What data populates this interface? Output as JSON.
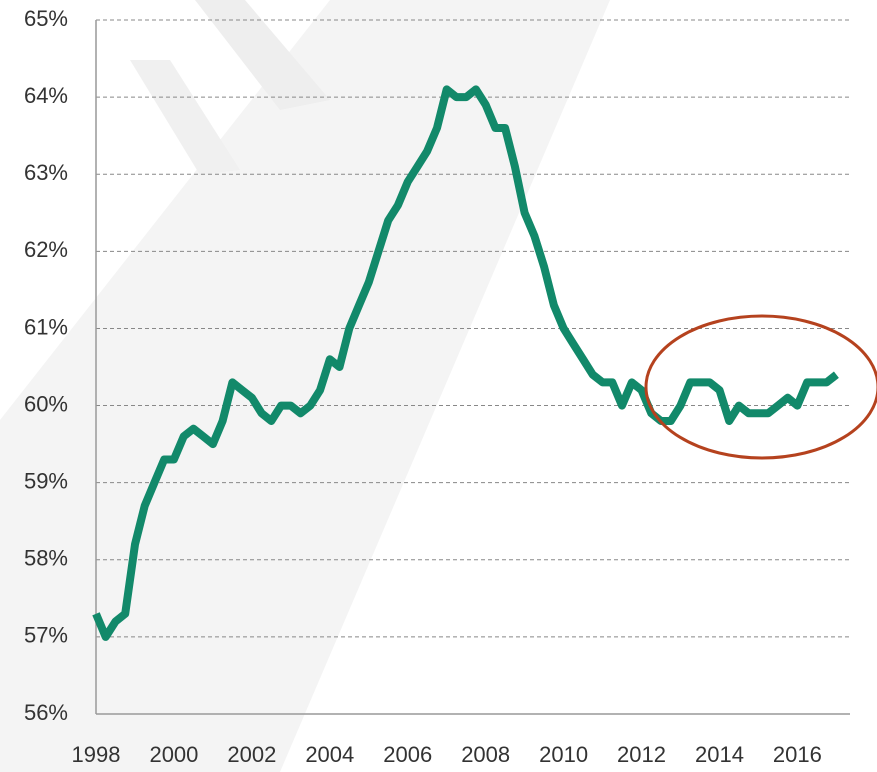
{
  "chart_data": {
    "type": "line",
    "x": [
      1998,
      1998.25,
      1998.5,
      1998.75,
      1999,
      1999.25,
      1999.5,
      1999.75,
      2000,
      2000.25,
      2000.5,
      2000.75,
      2001,
      2001.25,
      2001.5,
      2001.75,
      2002,
      2002.25,
      2002.5,
      2002.75,
      2003,
      2003.25,
      2003.5,
      2003.75,
      2004,
      2004.25,
      2004.5,
      2004.75,
      2005,
      2005.25,
      2005.5,
      2005.75,
      2006,
      2006.25,
      2006.5,
      2006.75,
      2007,
      2007.25,
      2007.5,
      2007.75,
      2008,
      2008.25,
      2008.5,
      2008.75,
      2009,
      2009.25,
      2009.5,
      2009.75,
      2010,
      2010.25,
      2010.5,
      2010.75,
      2011,
      2011.25,
      2011.5,
      2011.75,
      2012,
      2012.25,
      2012.5,
      2012.75,
      2013,
      2013.25,
      2013.5,
      2013.75,
      2014,
      2014.25,
      2014.5,
      2014.75,
      2015,
      2015.25,
      2015.5,
      2015.75,
      2016,
      2016.25,
      2016.5,
      2016.75,
      2017
    ],
    "values": [
      57.3,
      57.0,
      57.2,
      57.3,
      58.2,
      58.7,
      59.0,
      59.3,
      59.3,
      59.6,
      59.7,
      59.6,
      59.5,
      59.8,
      60.3,
      60.2,
      60.1,
      59.9,
      59.8,
      60.0,
      60.0,
      59.9,
      60.0,
      60.2,
      60.6,
      60.5,
      61.0,
      61.3,
      61.6,
      62.0,
      62.4,
      62.6,
      62.9,
      63.1,
      63.3,
      63.6,
      64.1,
      64.0,
      64.0,
      64.1,
      63.9,
      63.6,
      63.6,
      63.1,
      62.5,
      62.2,
      61.8,
      61.3,
      61.0,
      60.8,
      60.6,
      60.4,
      60.3,
      60.3,
      60.0,
      60.3,
      60.2,
      59.9,
      59.8,
      59.8,
      60.0,
      60.3,
      60.3,
      60.3,
      60.2,
      59.8,
      60.0,
      59.9,
      59.9,
      59.9,
      60.0,
      60.1,
      60.0,
      60.3,
      60.3,
      60.3,
      60.4
    ],
    "color": "#12896a",
    "xlim": [
      1998,
      2017.35
    ],
    "xticks": [
      1998,
      2000,
      2002,
      2004,
      2006,
      2008,
      2010,
      2012,
      2014,
      2016
    ],
    "ylim": [
      56,
      65
    ],
    "yticks": [
      {
        "value": 56,
        "label": "56%"
      },
      {
        "value": 57,
        "label": "57%"
      },
      {
        "value": 58,
        "label": "58%"
      },
      {
        "value": 59,
        "label": "59%"
      },
      {
        "value": 60,
        "label": "60%"
      },
      {
        "value": 61,
        "label": "61%"
      },
      {
        "value": 62,
        "label": "62%"
      },
      {
        "value": 63,
        "label": "63%"
      },
      {
        "value": 64,
        "label": "64%"
      },
      {
        "value": 65,
        "label": "65%"
      }
    ],
    "grid": true
  }
}
